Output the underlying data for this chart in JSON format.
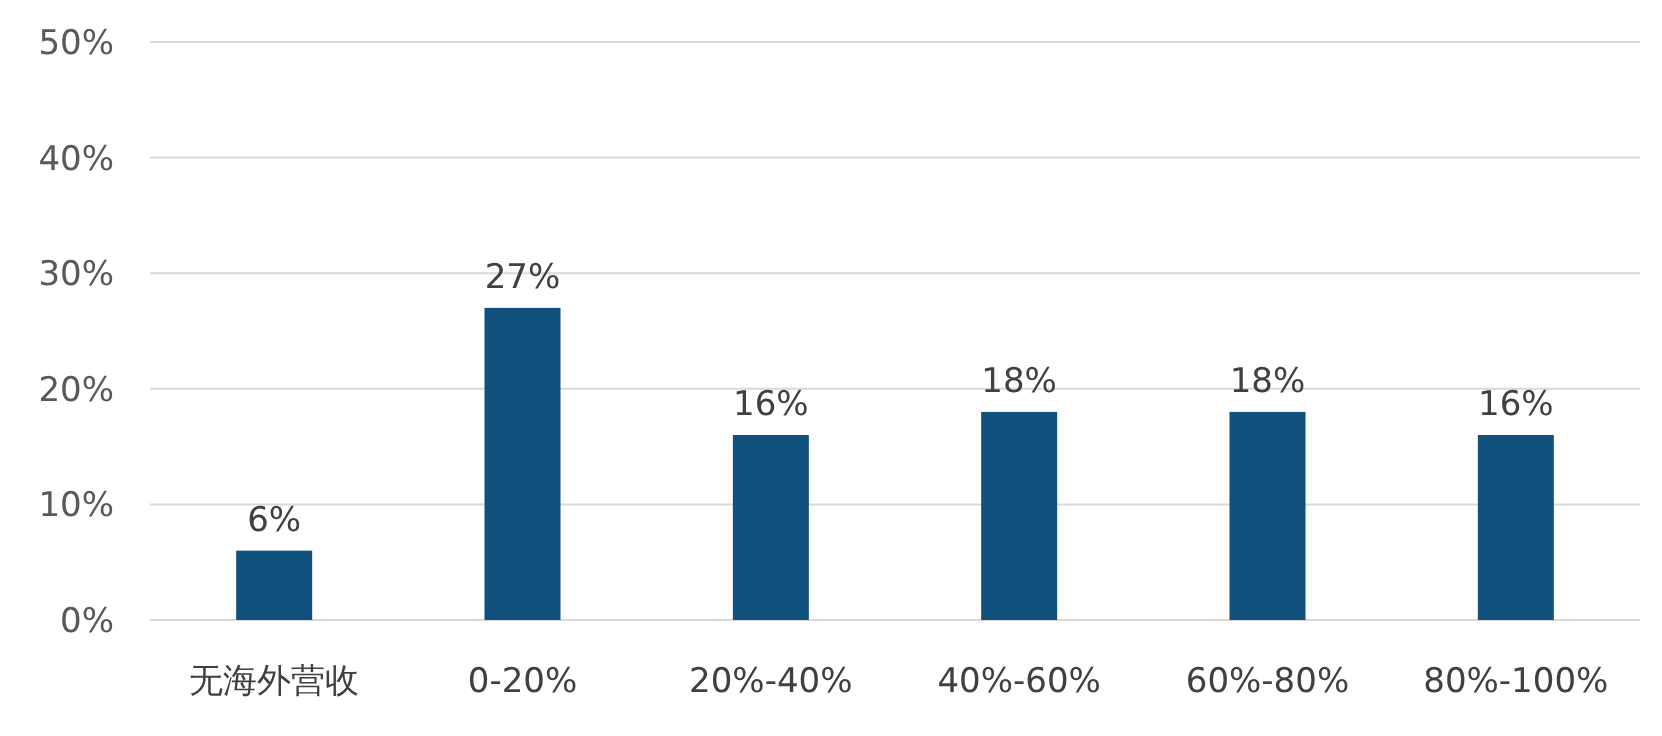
{
  "chart_data": {
    "type": "bar",
    "categories": [
      "无海外营收",
      "0-20%",
      "20%-40%",
      "40%-60%",
      "60%-80%",
      "80%-100%"
    ],
    "values": [
      6,
      27,
      16,
      18,
      18,
      16
    ],
    "value_labels": [
      "6%",
      "27%",
      "16%",
      "18%",
      "18%",
      "16%"
    ],
    "color": "#12507e",
    "ylim": [
      0,
      50
    ],
    "yticks": [
      {
        "value": 0,
        "label": "0%"
      },
      {
        "value": 10,
        "label": "10%"
      },
      {
        "value": 20,
        "label": "20%"
      },
      {
        "value": 30,
        "label": "30%"
      },
      {
        "value": 40,
        "label": "40%"
      },
      {
        "value": 50,
        "label": "50%"
      }
    ],
    "grid": "y"
  }
}
